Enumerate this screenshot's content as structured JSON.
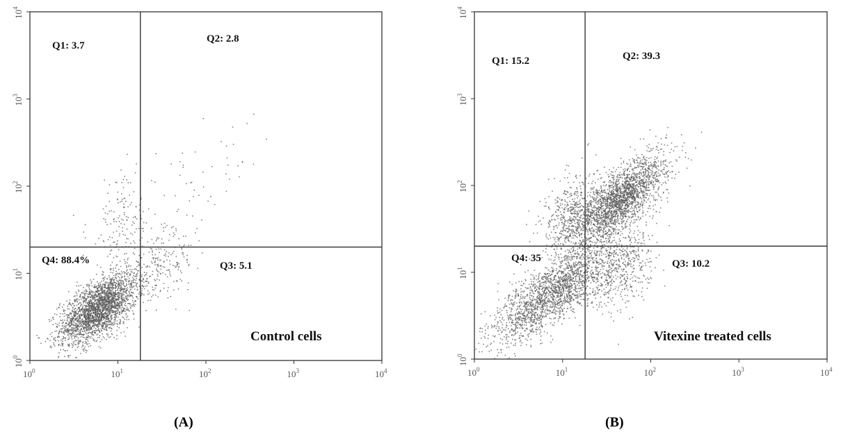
{
  "figure": {
    "panels": [
      {
        "id": "A",
        "panel_label": "(A)"
      },
      {
        "id": "B",
        "panel_label": "(B)"
      }
    ]
  },
  "chart_data": [
    {
      "type": "scatter",
      "panel_label": "(A)",
      "annotation": "Control cells",
      "x_scale": "log",
      "y_scale": "log",
      "xlim": [
        1,
        10000
      ],
      "ylim": [
        1,
        10000
      ],
      "x_ticks": [
        {
          "base": "10",
          "exp": "0"
        },
        {
          "base": "10",
          "exp": "1"
        },
        {
          "base": "10",
          "exp": "2"
        },
        {
          "base": "10",
          "exp": "3"
        },
        {
          "base": "10",
          "exp": "4"
        }
      ],
      "y_ticks": [
        {
          "base": "10",
          "exp": "0"
        },
        {
          "base": "10",
          "exp": "1"
        },
        {
          "base": "10",
          "exp": "2"
        },
        {
          "base": "10",
          "exp": "3"
        },
        {
          "base": "10",
          "exp": "4"
        }
      ],
      "x_gate": 18,
      "y_gate": 20,
      "quadrants": [
        {
          "label": "Q1: 3.7",
          "value": 3.7
        },
        {
          "label": "Q2: 2.8",
          "value": 2.8
        },
        {
          "label": "Q3: 5.1",
          "value": 5.1
        },
        {
          "label": "Q4: 88.4%",
          "value": 88.4
        }
      ],
      "point_color": "#5a5a5a",
      "populations": [
        {
          "center": [
            6,
            4
          ],
          "spread_log": [
            0.22,
            0.2
          ],
          "corr": 0.6,
          "count": 2600
        },
        {
          "center": [
            11,
            40
          ],
          "spread_log": [
            0.2,
            0.3
          ],
          "corr": 0.2,
          "count": 150
        },
        {
          "center": [
            30,
            12
          ],
          "spread_log": [
            0.2,
            0.18
          ],
          "corr": 0.3,
          "count": 200
        },
        {
          "center": [
            60,
            70
          ],
          "spread_log": [
            0.5,
            0.45
          ],
          "corr": 0.8,
          "count": 70
        }
      ]
    },
    {
      "type": "scatter",
      "panel_label": "(B)",
      "annotation": "Vitexine treated  cells",
      "x_scale": "log",
      "y_scale": "log",
      "xlim": [
        1,
        10000
      ],
      "ylim": [
        1,
        10000
      ],
      "x_ticks": [
        {
          "base": "10",
          "exp": "0"
        },
        {
          "base": "10",
          "exp": "1"
        },
        {
          "base": "10",
          "exp": "2"
        },
        {
          "base": "10",
          "exp": "3"
        },
        {
          "base": "10",
          "exp": "4"
        }
      ],
      "y_ticks": [
        {
          "base": "10",
          "exp": "0"
        },
        {
          "base": "10",
          "exp": "1"
        },
        {
          "base": "10",
          "exp": "2"
        },
        {
          "base": "10",
          "exp": "3"
        },
        {
          "base": "10",
          "exp": "4"
        }
      ],
      "x_gate": 18,
      "y_gate": 20,
      "quadrants": [
        {
          "label": "Q1: 15.2",
          "value": 15.2
        },
        {
          "label": "Q2: 39.3",
          "value": 39.3
        },
        {
          "label": "Q3: 10.2",
          "value": 10.2
        },
        {
          "label": "Q4: 35",
          "value": 35
        }
      ],
      "point_color": "#5a5a5a",
      "populations": [
        {
          "center": [
            8,
            6
          ],
          "spread_log": [
            0.38,
            0.3
          ],
          "corr": 0.8,
          "count": 2100
        },
        {
          "center": [
            45,
            70
          ],
          "spread_log": [
            0.25,
            0.25
          ],
          "corr": 0.7,
          "count": 2200
        },
        {
          "center": [
            12,
            45
          ],
          "spread_log": [
            0.15,
            0.22
          ],
          "corr": 0.3,
          "count": 500
        },
        {
          "center": [
            45,
            10
          ],
          "spread_log": [
            0.2,
            0.25
          ],
          "corr": 0.4,
          "count": 400
        }
      ]
    }
  ]
}
